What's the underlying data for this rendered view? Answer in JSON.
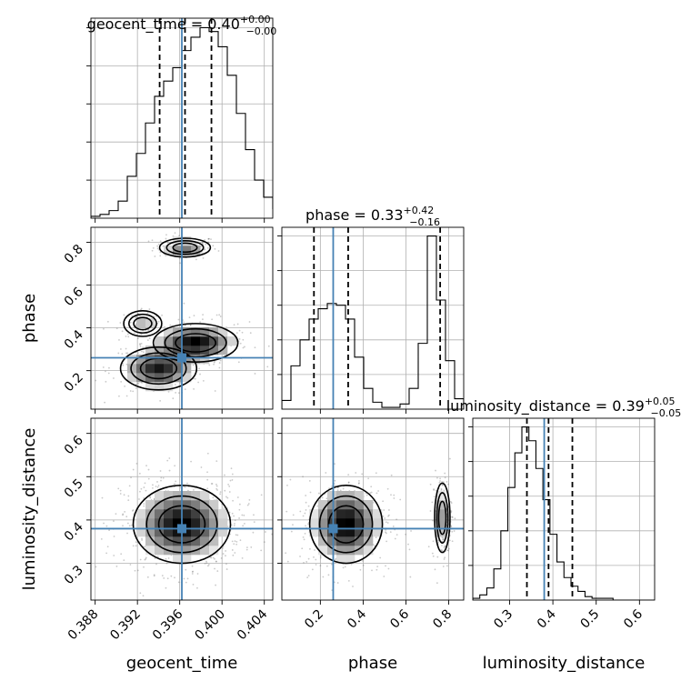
{
  "chart_data": {
    "type": "corner",
    "parameters": [
      "geocent_time",
      "phase",
      "luminosity_distance"
    ],
    "truth": {
      "geocent_time": 0.3962,
      "phase": 0.26,
      "luminosity_distance": 0.38
    },
    "titles": [
      {
        "name": "geocent_time",
        "median": "0.40",
        "plus": "+0.00",
        "minus": "−0.00",
        "q_lo": 0.3941,
        "q_med": 0.3965,
        "q_hi": 0.399
      },
      {
        "name": "phase",
        "median": "0.33",
        "plus": "+0.42",
        "minus": "−0.16",
        "q_lo": 0.17,
        "q_med": 0.33,
        "q_hi": 0.76
      },
      {
        "name": "luminosity_distance",
        "median": "0.39",
        "plus": "+0.05",
        "minus": "−0.05",
        "q_lo": 0.34,
        "q_med": 0.39,
        "q_hi": 0.445
      }
    ],
    "axes": {
      "geocent_time": {
        "range": [
          0.3876,
          0.4048
        ],
        "ticks": [
          "0.388",
          "0.392",
          "0.396",
          "0.400",
          "0.404"
        ],
        "tick_values": [
          0.388,
          0.392,
          0.396,
          0.4,
          0.404
        ]
      },
      "phase": {
        "range": [
          0.02,
          0.87
        ],
        "ticks": [
          "0.2",
          "0.4",
          "0.6",
          "0.8"
        ],
        "tick_values": [
          0.2,
          0.4,
          0.6,
          0.8
        ]
      },
      "luminosity_distance": {
        "range": [
          0.215,
          0.635
        ],
        "ticks": [
          "0.3",
          "0.4",
          "0.5",
          "0.6"
        ],
        "tick_values": [
          0.3,
          0.4,
          0.5,
          0.6
        ]
      }
    },
    "hist_geocent_time": {
      "edges_start": 0.3876,
      "bin_width": 0.00086,
      "counts": [
        1,
        2,
        4,
        9,
        22,
        34,
        50,
        64,
        72,
        79,
        88,
        95,
        100,
        98,
        90,
        75,
        55,
        36,
        20,
        11,
        5,
        3,
        1
      ]
    },
    "hist_phase": {
      "edges_start": 0.02,
      "bin_width": 0.0425,
      "counts": [
        5,
        25,
        40,
        52,
        58,
        61,
        60,
        52,
        30,
        12,
        4,
        1,
        1,
        3,
        12,
        38,
        100,
        63,
        28,
        6
      ]
    },
    "hist_luminosity_distance": {
      "edges_start": 0.215,
      "bin_width": 0.0162,
      "counts": [
        1,
        3,
        7,
        18,
        40,
        65,
        85,
        100,
        92,
        76,
        58,
        38,
        22,
        13,
        8,
        5,
        2,
        1,
        1,
        1,
        0,
        0,
        0,
        0,
        0,
        0
      ]
    },
    "modes": {
      "phase_vs_geocent_time": [
        {
          "cx": 0.3965,
          "cy": 0.775,
          "sx": 0.0012,
          "sy": 0.022,
          "w": 0.3
        },
        {
          "cx": 0.3975,
          "cy": 0.33,
          "sx": 0.002,
          "sy": 0.045,
          "w": 0.5
        },
        {
          "cx": 0.394,
          "cy": 0.21,
          "sx": 0.0018,
          "sy": 0.05,
          "w": 0.45
        },
        {
          "cx": 0.3925,
          "cy": 0.42,
          "sx": 0.0009,
          "sy": 0.03,
          "w": 0.15
        }
      ],
      "luminosity_distance_vs_geocent_time": [
        {
          "cx": 0.3962,
          "cy": 0.39,
          "sx": 0.0023,
          "sy": 0.045,
          "w": 1
        }
      ],
      "luminosity_distance_vs_phase": [
        {
          "cx": 0.32,
          "cy": 0.39,
          "sx": 0.085,
          "sy": 0.045,
          "w": 0.7
        },
        {
          "cx": 0.77,
          "cy": 0.405,
          "sx": 0.018,
          "sy": 0.04,
          "w": 0.3
        }
      ]
    },
    "grid": true
  }
}
